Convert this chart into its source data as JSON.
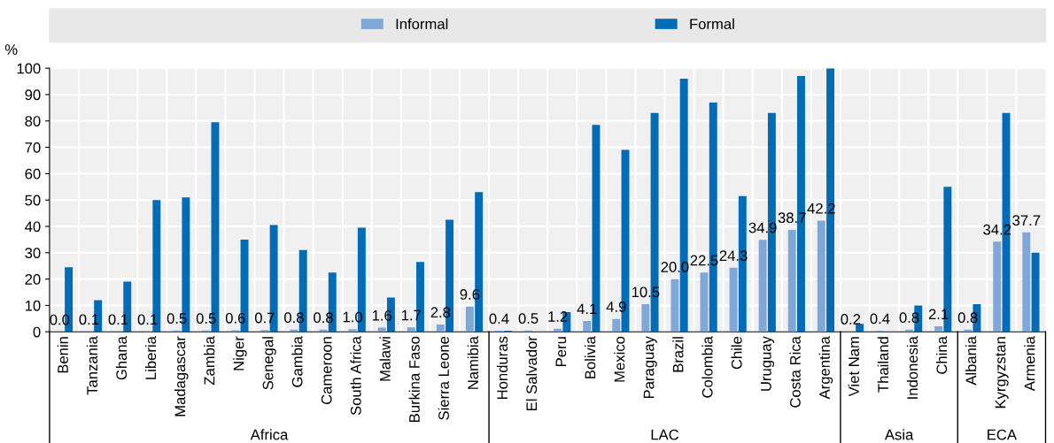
{
  "chart_data": {
    "type": "bar",
    "ylabel": "%",
    "categories": [
      "Benin",
      "Tanzania",
      "Ghana",
      "Liberia",
      "Madagascar",
      "Zambia",
      "Niger",
      "Senegal",
      "Gambia",
      "Cameroon",
      "South Africa",
      "Malawi",
      "Burkina Faso",
      "Sierra Leone",
      "Namibia",
      "Honduras",
      "El Salvador",
      "Peru",
      "Bolivia",
      "Mexico",
      "Paraguay",
      "Brazil",
      "Colombia",
      "Chile",
      "Uruguay",
      "Costa Rica",
      "Argentina",
      "Viet Nam",
      "Thailand",
      "Indonesia",
      "China",
      "Albania",
      "Kyrgyzstan",
      "Armenia"
    ],
    "series": [
      {
        "name": "Informal",
        "color": "#7fa8d9",
        "values": [
          0.0,
          0.1,
          0.1,
          0.1,
          0.5,
          0.5,
          0.6,
          0.7,
          0.8,
          0.8,
          1.0,
          1.6,
          1.7,
          2.8,
          9.6,
          0.4,
          0.5,
          1.2,
          4.1,
          4.9,
          10.5,
          20.0,
          22.5,
          24.3,
          34.9,
          38.7,
          42.2,
          0.2,
          0.4,
          0.8,
          2.1,
          0.8,
          34.2,
          37.7
        ],
        "value_labels": [
          "0.0",
          "0.1",
          "0.1",
          "0.1",
          "0.5",
          "0.5",
          "0.6",
          "0.7",
          "0.8",
          "0.8",
          "1.0",
          "1.6",
          "1.7",
          "2.8",
          "9.6",
          "0.4",
          "0.5",
          "1.2",
          "4.1",
          "4.9",
          "10.5",
          "20.0",
          "22.5",
          "24.3",
          "34.9",
          "38.7",
          "42.2",
          "0.2",
          "0.4",
          "0.8",
          "2.1",
          "0.8",
          "34.2",
          "37.7"
        ]
      },
      {
        "name": "Formal",
        "color": "#006bb6",
        "values": [
          24.5,
          12,
          19,
          50,
          51,
          79.5,
          35,
          40.5,
          31,
          22.5,
          39.5,
          13,
          26.5,
          42.5,
          53,
          0.3,
          null,
          7.5,
          78.5,
          69,
          83,
          96,
          87,
          51.5,
          83,
          97,
          100,
          3,
          null,
          10,
          55,
          10.5,
          83,
          30
        ]
      }
    ],
    "ylim": [
      0,
      100
    ],
    "yticks": [
      0,
      10,
      20,
      30,
      40,
      50,
      60,
      70,
      80,
      90,
      100
    ],
    "grid": true,
    "legend": "top",
    "annotations": [
      "Africa",
      "LAC",
      "Asia",
      "ECA"
    ]
  }
}
